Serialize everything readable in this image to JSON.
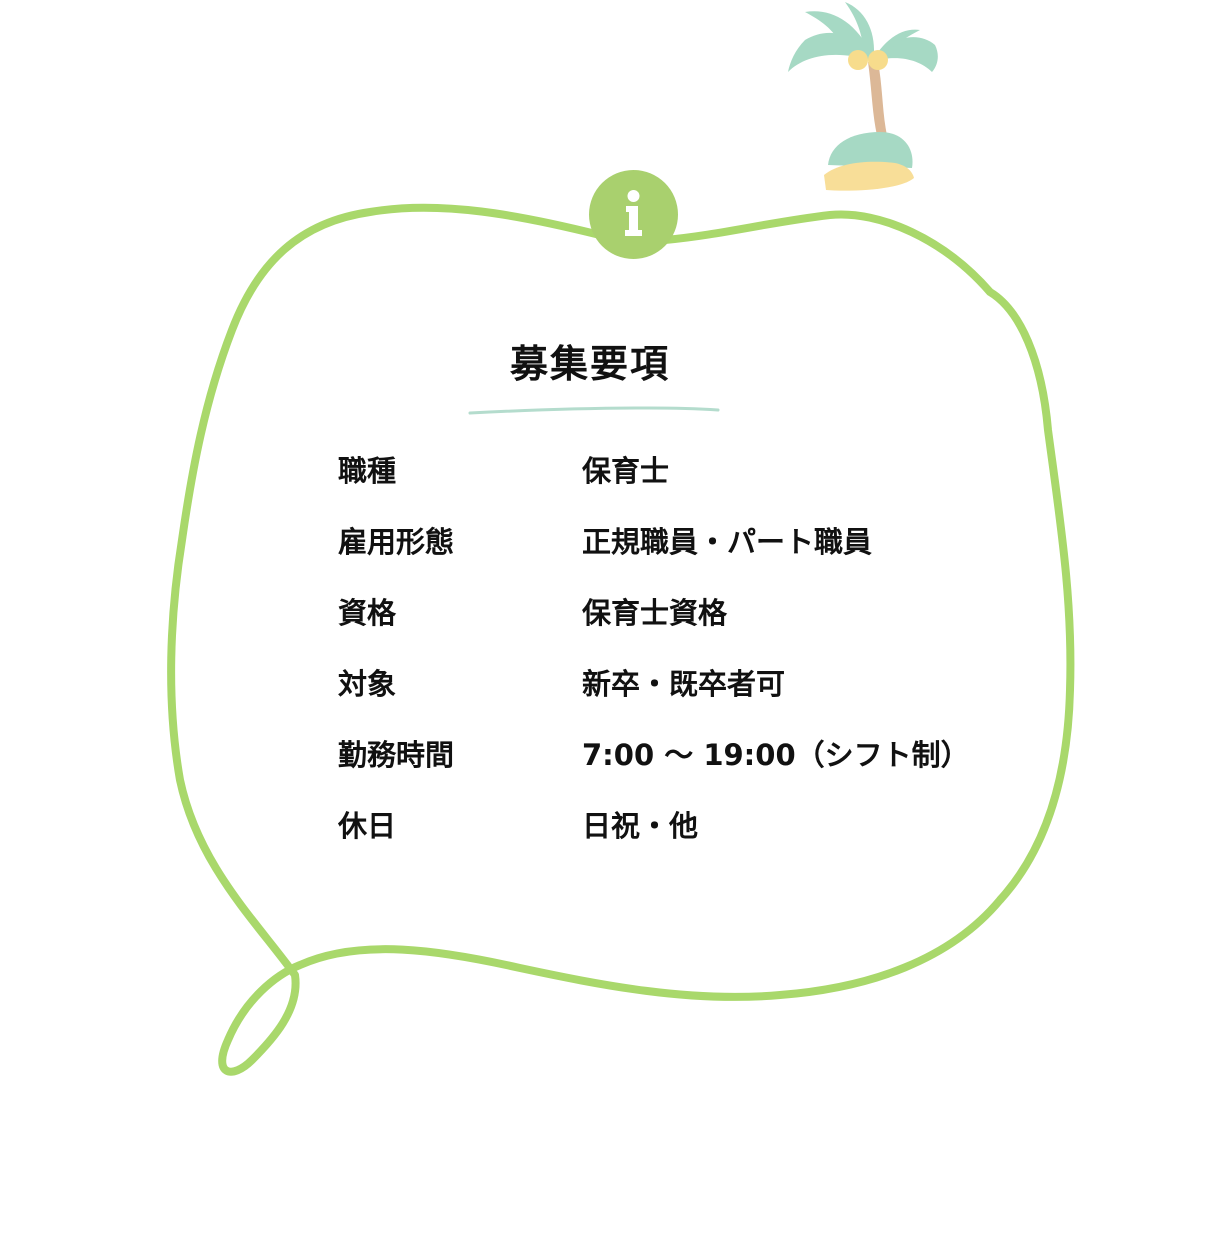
{
  "section": {
    "title": "募集要項",
    "info_icon": "info-icon",
    "decoration_icon": "palm-tree-icon"
  },
  "rows": [
    {
      "label": "職種",
      "value": "保育士"
    },
    {
      "label": "雇用形態",
      "value": "正規職員・パート職員"
    },
    {
      "label": "資格",
      "value": "保育士資格"
    },
    {
      "label": "対象",
      "value": "新卒・既卒者可"
    },
    {
      "label": "勤務時間",
      "value": "7:00 〜 19:00（シフト制）"
    },
    {
      "label": "休日",
      "value": "日祝・他"
    }
  ],
  "colors": {
    "outline": "#a9d86b",
    "badge": "#a9d06e",
    "palm_leaves": "#a6d9c4",
    "palm_trunk": "#dcb897",
    "coconuts": "#f7dc8c",
    "island_grass": "#a6d9c4",
    "island_sand": "#f8de98",
    "underline": "#b4dccd"
  }
}
